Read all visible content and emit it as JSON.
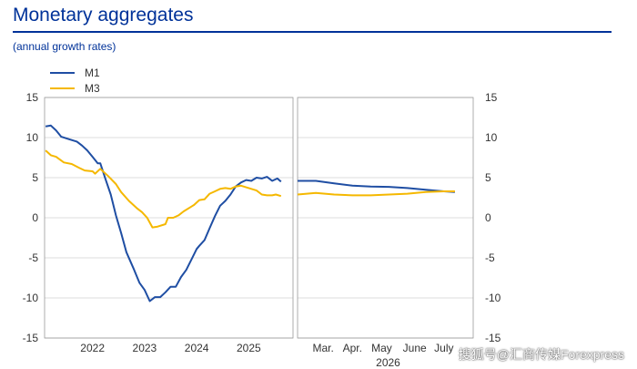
{
  "title": "Monetary aggregates",
  "subtitle": "(annual growth rates)",
  "watermark": "搜狐号@汇商传媒Forexpress",
  "colors": {
    "m1": "#1f4ea3",
    "m3": "#f5b800",
    "title": "#003299",
    "grid": "#dddddd",
    "divider": "#999999"
  },
  "chart_data": {
    "type": "line",
    "legend": [
      "M1",
      "M3"
    ],
    "legend_position": "top-left",
    "ylim": [
      -15,
      15
    ],
    "yticks": [
      15,
      10,
      5,
      0,
      -5,
      -10,
      -15
    ],
    "grid": true,
    "panels": [
      {
        "xlim": [
          2021.08,
          2025.85
        ],
        "xticks": [
          {
            "x": 2022.0,
            "label": "2022"
          },
          {
            "x": 2023.0,
            "label": "2023"
          },
          {
            "x": 2024.0,
            "label": "2024"
          },
          {
            "x": 2025.0,
            "label": "2025"
          }
        ],
        "series": [
          {
            "name": "M1",
            "points": [
              [
                2021.1,
                11.4
              ],
              [
                2021.2,
                11.5
              ],
              [
                2021.3,
                10.9
              ],
              [
                2021.4,
                10.1
              ],
              [
                2021.55,
                9.8
              ],
              [
                2021.7,
                9.5
              ],
              [
                2021.8,
                9.0
              ],
              [
                2021.9,
                8.4
              ],
              [
                2022.0,
                7.6
              ],
              [
                2022.1,
                6.8
              ],
              [
                2022.15,
                6.8
              ],
              [
                2022.25,
                4.8
              ],
              [
                2022.35,
                2.9
              ],
              [
                2022.45,
                0.3
              ],
              [
                2022.55,
                -1.9
              ],
              [
                2022.65,
                -4.3
              ],
              [
                2022.8,
                -6.5
              ],
              [
                2022.9,
                -8.1
              ],
              [
                2023.0,
                -9.0
              ],
              [
                2023.1,
                -10.4
              ],
              [
                2023.2,
                -9.9
              ],
              [
                2023.3,
                -9.9
              ],
              [
                2023.4,
                -9.3
              ],
              [
                2023.5,
                -8.6
              ],
              [
                2023.6,
                -8.6
              ],
              [
                2023.7,
                -7.4
              ],
              [
                2023.8,
                -6.5
              ],
              [
                2023.9,
                -5.2
              ],
              [
                2024.0,
                -3.9
              ],
              [
                2024.05,
                -3.5
              ],
              [
                2024.15,
                -2.8
              ],
              [
                2024.25,
                -1.3
              ],
              [
                2024.35,
                0.2
              ],
              [
                2024.45,
                1.5
              ],
              [
                2024.55,
                2.1
              ],
              [
                2024.65,
                2.9
              ],
              [
                2024.75,
                3.9
              ],
              [
                2024.85,
                4.4
              ],
              [
                2024.95,
                4.7
              ],
              [
                2025.05,
                4.6
              ],
              [
                2025.15,
                5.0
              ],
              [
                2025.25,
                4.9
              ],
              [
                2025.35,
                5.1
              ],
              [
                2025.45,
                4.6
              ],
              [
                2025.55,
                4.9
              ],
              [
                2025.62,
                4.5
              ]
            ]
          },
          {
            "name": "M3",
            "points": [
              [
                2021.1,
                8.4
              ],
              [
                2021.2,
                7.8
              ],
              [
                2021.3,
                7.6
              ],
              [
                2021.45,
                6.9
              ],
              [
                2021.6,
                6.7
              ],
              [
                2021.75,
                6.2
              ],
              [
                2021.85,
                5.9
              ],
              [
                2022.0,
                5.8
              ],
              [
                2022.05,
                5.5
              ],
              [
                2022.15,
                6.1
              ],
              [
                2022.3,
                5.2
              ],
              [
                2022.45,
                4.2
              ],
              [
                2022.55,
                3.2
              ],
              [
                2022.7,
                2.1
              ],
              [
                2022.85,
                1.2
              ],
              [
                2022.95,
                0.7
              ],
              [
                2023.05,
                0.0
              ],
              [
                2023.15,
                -1.2
              ],
              [
                2023.25,
                -1.1
              ],
              [
                2023.4,
                -0.8
              ],
              [
                2023.45,
                0.0
              ],
              [
                2023.55,
                0.0
              ],
              [
                2023.65,
                0.3
              ],
              [
                2023.75,
                0.8
              ],
              [
                2023.9,
                1.4
              ],
              [
                2023.95,
                1.6
              ],
              [
                2024.05,
                2.2
              ],
              [
                2024.15,
                2.3
              ],
              [
                2024.25,
                3.0
              ],
              [
                2024.35,
                3.3
              ],
              [
                2024.45,
                3.6
              ],
              [
                2024.55,
                3.7
              ],
              [
                2024.65,
                3.6
              ],
              [
                2024.75,
                3.9
              ],
              [
                2024.85,
                4.0
              ],
              [
                2024.95,
                3.8
              ],
              [
                2025.05,
                3.6
              ],
              [
                2025.15,
                3.4
              ],
              [
                2025.25,
                2.9
              ],
              [
                2025.35,
                2.8
              ],
              [
                2025.45,
                2.8
              ],
              [
                2025.52,
                2.9
              ],
              [
                2025.62,
                2.7
              ]
            ]
          }
        ]
      },
      {
        "xlim": [
          2026.1,
          2026.58
        ],
        "xticks": [
          {
            "x": 2026.17,
            "label": "Mar."
          },
          {
            "x": 2026.25,
            "label": "Apr."
          },
          {
            "x": 2026.33,
            "label": "May"
          },
          {
            "x": 2026.42,
            "label": "June"
          },
          {
            "x": 2026.5,
            "label": "July"
          }
        ],
        "xlabel_year": "2026",
        "series": [
          {
            "name": "M1",
            "points": [
              [
                2026.1,
                4.6
              ],
              [
                2026.15,
                4.6
              ],
              [
                2026.2,
                4.3
              ],
              [
                2026.25,
                4.0
              ],
              [
                2026.3,
                3.9
              ],
              [
                2026.35,
                3.85
              ],
              [
                2026.4,
                3.7
              ],
              [
                2026.45,
                3.5
              ],
              [
                2026.5,
                3.3
              ],
              [
                2026.53,
                3.2
              ]
            ]
          },
          {
            "name": "M3",
            "points": [
              [
                2026.1,
                2.9
              ],
              [
                2026.15,
                3.1
              ],
              [
                2026.2,
                2.9
              ],
              [
                2026.25,
                2.8
              ],
              [
                2026.3,
                2.8
              ],
              [
                2026.35,
                2.9
              ],
              [
                2026.4,
                3.0
              ],
              [
                2026.45,
                3.2
              ],
              [
                2026.5,
                3.3
              ],
              [
                2026.53,
                3.3
              ]
            ]
          }
        ]
      }
    ]
  }
}
